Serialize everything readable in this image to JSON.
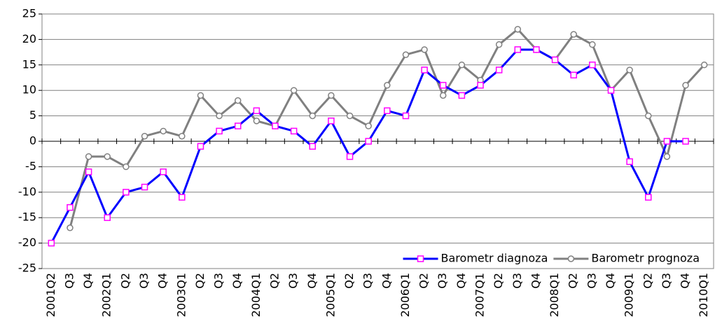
{
  "chart_data": {
    "type": "line",
    "categories": [
      "2001Q2",
      "Q3",
      "Q4",
      "2002Q1",
      "Q2",
      "Q3",
      "Q4",
      "2003Q1",
      "Q2",
      "Q3",
      "Q4",
      "2004Q1",
      "Q2",
      "Q3",
      "Q4",
      "2005Q1",
      "Q2",
      "Q3",
      "Q4",
      "2006Q1",
      "Q2",
      "Q3",
      "Q4",
      "2007Q1",
      "Q2",
      "Q3",
      "Q4",
      "2008Q1",
      "Q2",
      "Q3",
      "Q4",
      "2009Q1",
      "Q2",
      "Q3",
      "Q4",
      "2010Q1"
    ],
    "series": [
      {
        "name": "Barometr diagnoza",
        "color": "#0000ff",
        "marker": "square",
        "marker_color": "#ff00ff",
        "values": [
          -20,
          -13,
          -6,
          -15,
          -10,
          -9,
          -6,
          -11,
          -1,
          2,
          3,
          6,
          3,
          2,
          -1,
          4,
          -3,
          0,
          6,
          5,
          14,
          11,
          9,
          11,
          14,
          18,
          18,
          16,
          13,
          15,
          10,
          -4,
          -11,
          0,
          0,
          null
        ]
      },
      {
        "name": "Barometr prognoza",
        "color": "#808080",
        "marker": "circle",
        "marker_color": "#808080",
        "values": [
          null,
          -17,
          -3,
          -3,
          -5,
          1,
          2,
          1,
          9,
          5,
          8,
          4,
          3,
          10,
          5,
          9,
          5,
          3,
          11,
          17,
          18,
          9,
          15,
          12,
          19,
          22,
          18,
          16,
          21,
          19,
          10,
          14,
          5,
          -3,
          11,
          15
        ]
      }
    ],
    "ylim": [
      -25,
      25
    ],
    "yticks": [
      -25,
      -20,
      -15,
      -10,
      -5,
      0,
      5,
      10,
      15,
      20,
      25
    ],
    "grid": true,
    "legend": "lower right"
  }
}
